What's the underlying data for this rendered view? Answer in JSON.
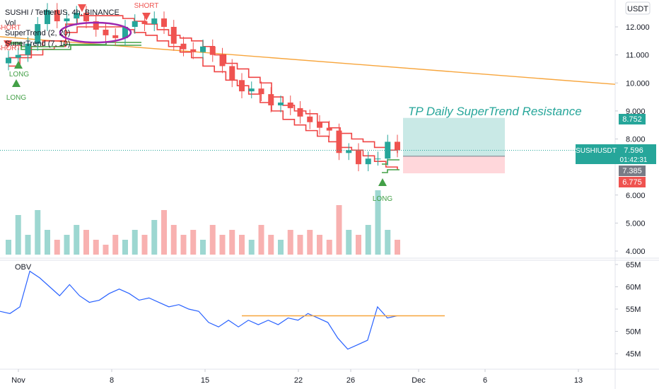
{
  "header": {
    "symbol_title": "SUSHI / TetherUS, 4h, BINANCE",
    "vol_label": "Vol",
    "indicator_1": "SuperTrend (2, 20)",
    "indicator_2": "SuperTrend (7, 10)",
    "currency": "USDT"
  },
  "signals": {
    "short_1": "SHORT",
    "short_2": "SHORT",
    "short_3": "SHORT",
    "long_1": "LONG",
    "long_2": "LONG",
    "long_3": "LONG"
  },
  "annotation": {
    "text": "TP Daily SuperTrend Resistance",
    "text_color": "#26a69a"
  },
  "price_tags": {
    "target": "8.752",
    "symbol": "SUSHIUSDT",
    "current": "7.596",
    "countdown": "01:42:31",
    "entry": "7.385",
    "stop": "6.775"
  },
  "colors": {
    "up": "#26a69a",
    "down": "#ef5350",
    "trendline": "#f7a53c",
    "supertrend_up": "#43a047",
    "supertrend_down": "#ef4444",
    "obv": "#2962ff",
    "ellipse": "#9c27b0"
  },
  "chart_data": [
    {
      "type": "candlestick",
      "title": "SUSHI / TetherUS, 4h, BINANCE",
      "x_ticks": [
        "Nov",
        "8",
        "15",
        "22",
        "26",
        "Dec",
        "6",
        "13"
      ],
      "y_ticks": [
        "12.000",
        "11.000",
        "10.000",
        "9.000",
        "8.000",
        "6.000",
        "5.000",
        "4.000"
      ],
      "ylim": [
        3.9,
        13.2
      ],
      "closes": [
        10.9,
        11.0,
        11.4,
        12.1,
        12.6,
        12.2,
        12.3,
        12.5,
        12.2,
        11.9,
        11.7,
        11.6,
        12.0,
        12.2,
        12.1,
        12.3,
        12.0,
        11.4,
        11.2,
        11.1,
        11.3,
        11.0,
        10.6,
        10.1,
        9.7,
        9.8,
        9.6,
        9.2,
        9.3,
        9.1,
        8.8,
        8.6,
        8.4,
        8.3,
        7.5,
        7.6,
        7.1,
        7.3,
        7.3,
        7.9,
        7.6
      ],
      "supertrend_2_20": [
        10.9,
        11.0,
        11.3,
        11.5,
        11.5,
        12.1,
        12.4,
        12.4,
        12.4,
        12.4,
        12.3,
        12.2,
        12.1,
        11.9,
        11.7,
        11.6,
        11.5,
        11.3,
        11.0,
        10.7,
        10.5,
        10.2,
        10.0,
        9.5,
        9.2,
        9.0,
        8.9,
        8.6,
        8.4,
        8.2,
        8.0,
        7.9,
        7.7,
        7.6,
        7.5
      ],
      "supertrend_7_10": [
        10.6,
        10.9,
        11.0,
        11.2,
        11.3,
        11.8,
        12.0,
        12.0,
        12.0,
        12.0,
        11.9,
        11.8,
        11.7,
        11.5,
        11.3,
        11.1,
        10.9,
        10.6,
        10.4,
        10.1,
        9.9,
        9.6,
        9.3,
        9.0,
        8.7,
        8.5,
        8.3,
        8.1,
        7.9,
        7.7,
        7.6,
        7.4,
        7.2,
        7.0,
        6.9
      ],
      "trendline": {
        "start": 11.65,
        "end": 9.95
      },
      "volume": [
        0.3,
        0.8,
        0.4,
        0.9,
        0.5,
        0.3,
        0.4,
        0.6,
        0.5,
        0.3,
        0.2,
        0.4,
        0.3,
        0.5,
        0.4,
        0.7,
        0.9,
        0.6,
        0.4,
        0.5,
        0.3,
        0.6,
        0.4,
        0.5,
        0.4,
        0.3,
        0.6,
        0.4,
        0.3,
        0.5,
        0.4,
        0.5,
        0.4,
        0.3,
        1.0,
        0.5,
        0.4,
        0.6,
        1.3,
        0.5,
        0.3
      ],
      "position": {
        "target": 8.752,
        "entry": 7.385,
        "stop": 6.775
      }
    },
    {
      "type": "line",
      "title": "OBV",
      "y_ticks": [
        "65M",
        "60M",
        "55M",
        "50M",
        "45M"
      ],
      "ylim": [
        41.5,
        66
      ],
      "values": [
        54.5,
        54.0,
        55.5,
        63.5,
        62.0,
        60.0,
        58.0,
        60.5,
        58.0,
        56.5,
        57.0,
        58.5,
        59.5,
        58.5,
        57.0,
        57.5,
        56.5,
        55.5,
        56.0,
        55.0,
        54.5,
        52.0,
        51.0,
        52.5,
        51.0,
        52.5,
        51.5,
        52.5,
        51.5,
        53.0,
        52.5,
        54.0,
        53.0,
        52.0,
        48.5,
        46.0,
        47.0,
        48.0,
        55.5,
        53.0,
        53.5
      ],
      "resistance": 53.5
    }
  ]
}
